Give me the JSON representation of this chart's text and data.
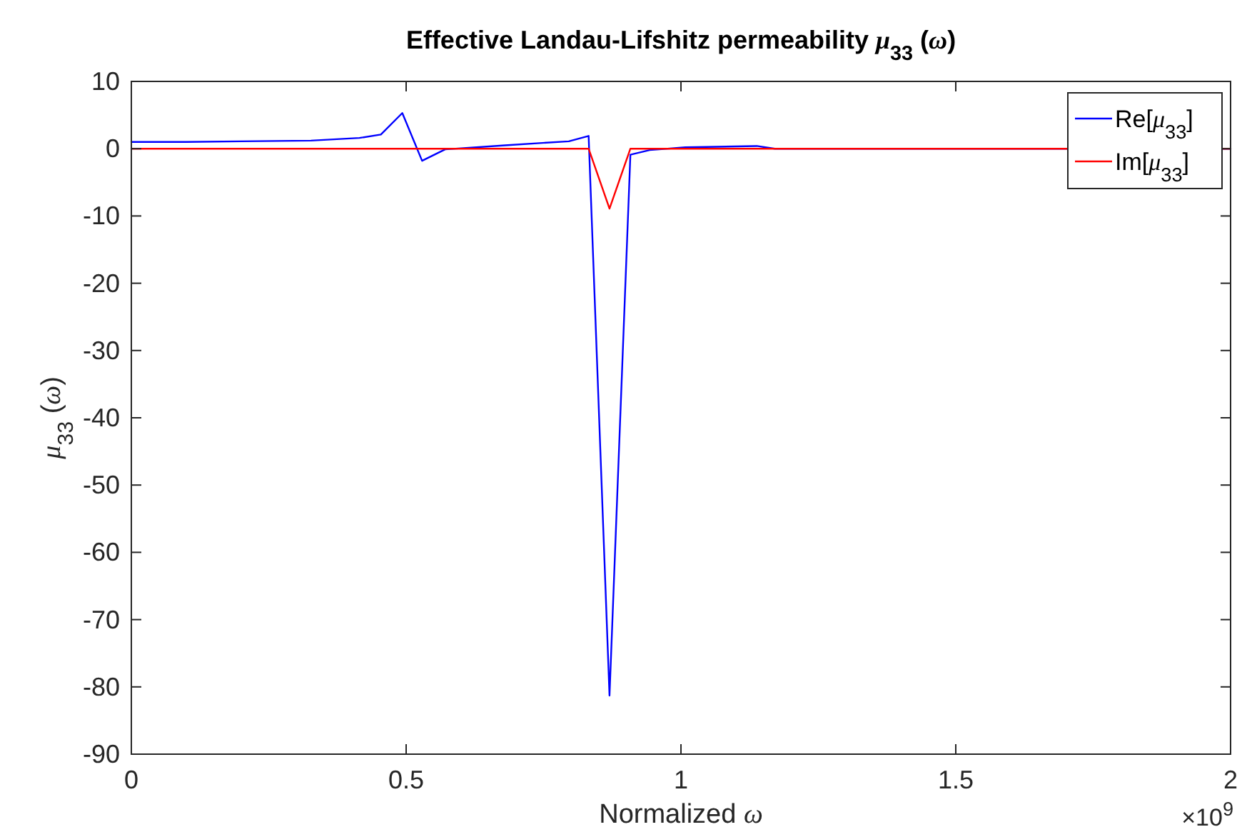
{
  "chart_data": {
    "type": "line",
    "title": "Effective Landau-Lifshitz permeability μ$_{33}$ (ω)",
    "xlabel": "Normalized ω",
    "ylabel": "μ$_{33}$ (ω)",
    "annotations": [
      "×10$^{9}$"
    ],
    "series": [
      {
        "name": "Re[μ$_{33}$]",
        "color": "#0000ff",
        "x": [
          0,
          0.1,
          0.2,
          0.327,
          0.415,
          0.454,
          0.493,
          0.529,
          0.571,
          0.68,
          0.796,
          0.832,
          0.87,
          0.908,
          0.943,
          1.008,
          1.138,
          1.171,
          2
        ],
        "values": [
          1,
          1,
          1.1,
          1.2,
          1.6,
          2.1,
          5.3,
          -1.8,
          -0.1,
          0.5,
          1.1,
          1.9,
          -81.3,
          -0.9,
          -0.2,
          0.2,
          0.4,
          0,
          0
        ]
      },
      {
        "name": "Im[μ$_{33}$]",
        "color": "#ff0000",
        "x": [
          0,
          0.832,
          0.87,
          0.908,
          2
        ],
        "values": [
          0,
          0,
          -8.9,
          0,
          0
        ]
      }
    ],
    "xlim": [
      0,
      2
    ],
    "xticks": [
      0,
      0.5,
      1,
      1.5,
      2
    ],
    "ylim": [
      -90,
      10
    ],
    "yticks": [
      -90,
      -80,
      -70,
      -60,
      -50,
      -40,
      -30,
      -20,
      -10,
      0,
      10
    ],
    "grid": false,
    "legend": "top right",
    "marker": "none",
    "line_style": "solid"
  }
}
